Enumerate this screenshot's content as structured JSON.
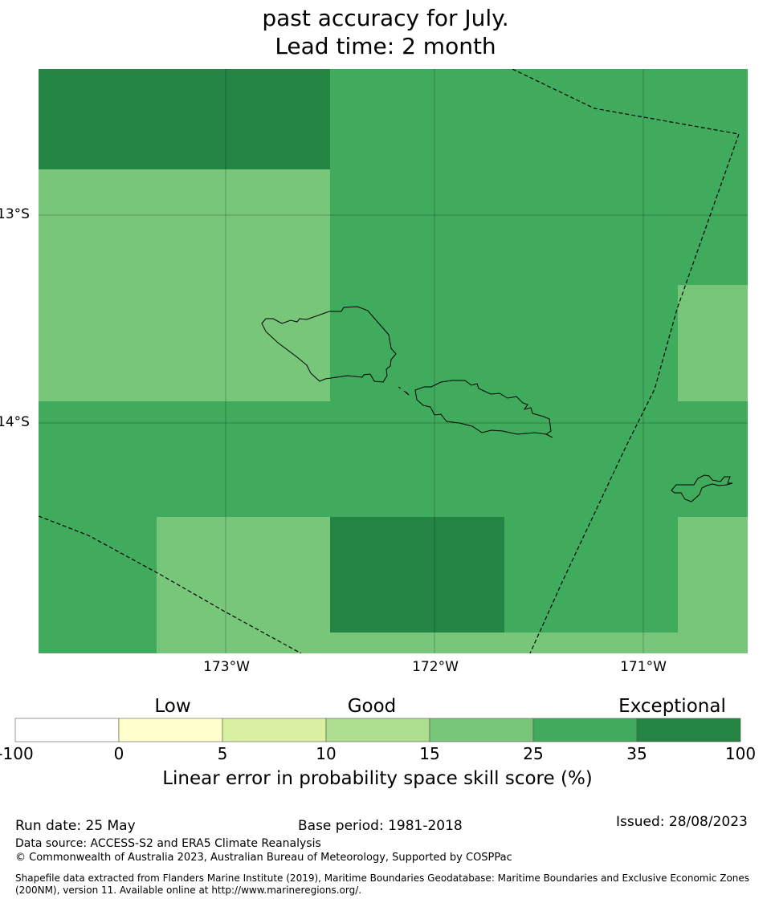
{
  "title": {
    "line1": "past accuracy for July.",
    "line2": "Lead time: 2 month"
  },
  "map": {
    "lat_labels": [
      "13°S",
      "14°S"
    ],
    "lon_labels": [
      "173°W",
      "172°W",
      "171°W"
    ],
    "colors": {
      "exceptional": "#238443",
      "good_high": "#41ab5d",
      "good_mid": "#78c679",
      "coastline": "#000000",
      "eez_boundary": "#000000"
    },
    "cell_values": [
      [
        "35-100",
        "25-35",
        "25-35",
        "25-35"
      ],
      [
        "15-25",
        "25-35",
        "25-35",
        "15-25"
      ],
      [
        "25-35",
        "25-35",
        "25-35",
        "25-35"
      ],
      [
        "25-35",
        "15-25",
        "35-100",
        "25-35"
      ]
    ]
  },
  "colorbar": {
    "categories": [
      "Low",
      "Good",
      "Exceptional"
    ],
    "ticks": [
      "-100",
      "0",
      "5",
      "10",
      "15",
      "25",
      "35",
      "100"
    ],
    "colors": [
      "#ffffff",
      "#ffffcc",
      "#d9f0a3",
      "#addd8e",
      "#78c679",
      "#41ab5d",
      "#238443"
    ],
    "label": "Linear error in probability space skill score (%)"
  },
  "footer": {
    "run_date": "Run date: 25 May",
    "base_period": "Base period: 1981-2018",
    "issued": "Issued: 28/08/2023",
    "data_source": "Data source: ACCESS-S2 and ERA5 Climate Reanalysis",
    "copyright": "© Commonwealth of Australia 2023, Australian Bureau of Meteorology, Supported by COSPPac",
    "shapefile": "Shapefile data extracted from Flanders Marine Institute (2019), Maritime Boundaries Geodatabase: Maritime Boundaries and Exclusive Economic Zones (200NM), version 11. Available online at http://www.marineregions.org/."
  }
}
